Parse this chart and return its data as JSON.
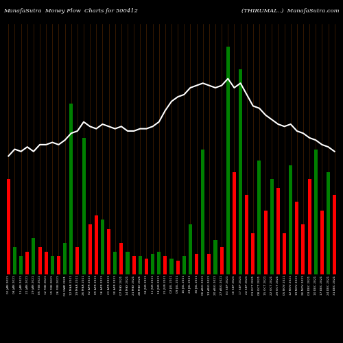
{
  "title_left": "ManafaSutra  Money Flow  Charts for 500412",
  "title_right": "(THIRUMAL..)  ManafaSutra.com",
  "background_color": "#000000",
  "bar_line_color": "#4a2200",
  "white_line_color": "#ffffff",
  "categories": [
    "01 JAN 2021",
    "08 JAN 2021",
    "15 JAN 2021",
    "22 JAN 2021",
    "29 JAN 2021",
    "05 FEB 2021",
    "12 FEB 2021",
    "19 FEB 2021",
    "26 FEB 2021",
    "05 MAR 2021",
    "12 MAR 2021",
    "19 MAR 2021",
    "26 MAR 2021",
    "02 APR 2021",
    "09 APR 2021",
    "16 APR 2021",
    "23 APR 2021",
    "30 APR 2021",
    "07 MAY 2021",
    "14 MAY 2021",
    "21 MAY 2021",
    "28 MAY 2021",
    "04 JUN 2021",
    "11 JUN 2021",
    "18 JUN 2021",
    "25 JUN 2021",
    "02 JUL 2021",
    "09 JUL 2021",
    "16 JUL 2021",
    "23 JUL 2021",
    "30 JUL 2021",
    "06 AUG 2021",
    "13 AUG 2021",
    "20 AUG 2021",
    "27 AUG 2021",
    "03 SEP 2021",
    "10 SEP 2021",
    "17 SEP 2021",
    "24 SEP 2021",
    "01 OCT 2021",
    "08 OCT 2021",
    "15 OCT 2021",
    "22 OCT 2021",
    "29 OCT 2021",
    "05 NOV 2021",
    "12 NOV 2021",
    "19 NOV 2021",
    "26 NOV 2021",
    "03 DEC 2021",
    "10 DEC 2021",
    "17 DEC 2021",
    "24 DEC 2021",
    "31 DEC 2021"
  ],
  "bar_values": [
    42,
    12,
    8,
    10,
    16,
    12,
    10,
    8,
    8,
    14,
    75,
    12,
    60,
    22,
    26,
    24,
    20,
    10,
    14,
    10,
    8,
    8,
    7,
    9,
    10,
    8,
    7,
    6,
    8,
    22,
    9,
    55,
    9,
    15,
    12,
    100,
    45,
    90,
    35,
    18,
    50,
    28,
    42,
    38,
    18,
    48,
    32,
    22,
    42,
    55,
    28,
    45,
    35
  ],
  "bar_colors": [
    "red",
    "green",
    "green",
    "red",
    "green",
    "red",
    "red",
    "green",
    "red",
    "green",
    "green",
    "red",
    "green",
    "red",
    "red",
    "green",
    "red",
    "green",
    "red",
    "green",
    "red",
    "green",
    "red",
    "green",
    "green",
    "red",
    "green",
    "red",
    "green",
    "green",
    "red",
    "green",
    "red",
    "green",
    "red",
    "green",
    "red",
    "green",
    "red",
    "red",
    "green",
    "red",
    "green",
    "red",
    "red",
    "green",
    "red",
    "red",
    "red",
    "green",
    "red",
    "green",
    "red"
  ],
  "line_values": [
    52,
    55,
    54,
    56,
    54,
    57,
    57,
    58,
    57,
    59,
    62,
    63,
    67,
    65,
    64,
    66,
    65,
    64,
    65,
    63,
    63,
    64,
    64,
    65,
    67,
    72,
    76,
    78,
    79,
    82,
    83,
    84,
    83,
    82,
    83,
    86,
    82,
    84,
    79,
    74,
    73,
    70,
    68,
    66,
    65,
    66,
    63,
    62,
    60,
    59,
    57,
    56,
    54
  ],
  "ylim": [
    0,
    110
  ],
  "line_ylim": [
    0,
    110
  ]
}
